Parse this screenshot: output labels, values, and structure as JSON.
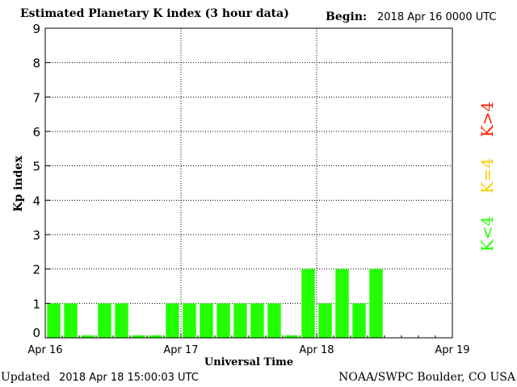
{
  "header": {
    "title": "Estimated Planetary K index (3 hour data)",
    "begin_label": "Begin:",
    "begin_value": "2018 Apr 16 0000 UTC"
  },
  "footer": {
    "updated_label": "Updated",
    "updated_value": "2018 Apr 18 15:00:03 UTC",
    "credit": "NOAA/SWPC Boulder, CO USA"
  },
  "legend": {
    "items": [
      {
        "label": "K<4",
        "color": "#22ff00"
      },
      {
        "label": "K=4",
        "color": "#ffcc00"
      },
      {
        "label": "K>4",
        "color": "#ff2200"
      }
    ]
  },
  "chart_data": {
    "type": "bar",
    "title": "Estimated Planetary K index (3 hour data)",
    "xlabel": "Universal Time",
    "ylabel": "Kp index",
    "ylim": [
      0,
      9
    ],
    "yticks": [
      "0",
      "1",
      "2",
      "3",
      "4",
      "5",
      "6",
      "7",
      "8",
      "9"
    ],
    "xticks": [
      "Apr 16",
      "Apr 17",
      "Apr 18",
      "Apr 19"
    ],
    "x_slots_total": 24,
    "grid": true,
    "legend_position": "right",
    "bar_color": "#22ff00",
    "values": [
      1,
      1,
      0,
      1,
      1,
      0,
      0,
      1,
      1,
      1,
      1,
      1,
      1,
      1,
      0,
      2,
      1,
      2,
      1,
      2
    ]
  }
}
